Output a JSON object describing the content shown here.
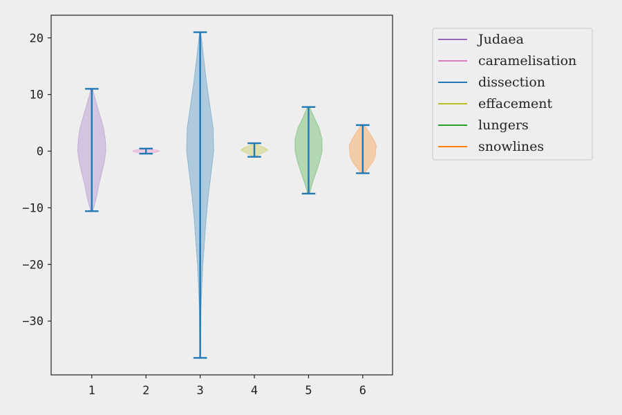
{
  "chart_data": {
    "type": "violin",
    "title": "",
    "xlabel": "",
    "ylabel": "",
    "x_ticks": [
      1,
      2,
      3,
      4,
      5,
      6
    ],
    "y_ticks": [
      20,
      10,
      0,
      -10,
      -20,
      -30
    ],
    "xlim": [
      0.25,
      6.55
    ],
    "ylim": [
      -39.5,
      24.0
    ],
    "legend_position": "upper-right-outside",
    "colors": {
      "background": "#eeeeee",
      "axes_face": "#eeeeee",
      "axis": "#222222",
      "stat_lines": "#1f77b4"
    },
    "series": [
      {
        "name": "Judaea",
        "position": 1,
        "min": -10.6,
        "max": 11.0,
        "max_half_width": 0.26,
        "color": "#9467bd",
        "profile": [
          [
            -10.6,
            0.02
          ],
          [
            -9.5,
            0.05
          ],
          [
            -8,
            0.09
          ],
          [
            -6,
            0.13
          ],
          [
            -4,
            0.18
          ],
          [
            -2,
            0.23
          ],
          [
            0,
            0.26
          ],
          [
            2,
            0.25
          ],
          [
            4,
            0.22
          ],
          [
            6,
            0.16
          ],
          [
            8,
            0.1
          ],
          [
            10,
            0.04
          ],
          [
            11.0,
            0.02
          ]
        ]
      },
      {
        "name": "caramelisation",
        "position": 2,
        "min": -0.45,
        "max": 0.45,
        "max_half_width": 0.25,
        "color": "#e377c2",
        "profile": [
          [
            -0.45,
            0.02
          ],
          [
            -0.3,
            0.12
          ],
          [
            -0.15,
            0.22
          ],
          [
            0,
            0.25
          ],
          [
            0.15,
            0.22
          ],
          [
            0.3,
            0.12
          ],
          [
            0.45,
            0.02
          ]
        ]
      },
      {
        "name": "dissection",
        "position": 3,
        "min": -36.5,
        "max": 21.0,
        "max_half_width": 0.25,
        "color": "#1f77b4",
        "profile": [
          [
            -36.5,
            0.005
          ],
          [
            -32,
            0.01
          ],
          [
            -28,
            0.015
          ],
          [
            -24,
            0.03
          ],
          [
            -20,
            0.05
          ],
          [
            -16,
            0.08
          ],
          [
            -12,
            0.11
          ],
          [
            -8,
            0.15
          ],
          [
            -4,
            0.2
          ],
          [
            0,
            0.25
          ],
          [
            4,
            0.24
          ],
          [
            8,
            0.18
          ],
          [
            12,
            0.12
          ],
          [
            16,
            0.07
          ],
          [
            19,
            0.035
          ],
          [
            21.0,
            0.01
          ]
        ]
      },
      {
        "name": "effacement",
        "position": 4,
        "min": -1.0,
        "max": 1.4,
        "max_half_width": 0.25,
        "color": "#bcbd22",
        "profile": [
          [
            -1.0,
            0.01
          ],
          [
            -0.6,
            0.09
          ],
          [
            -0.2,
            0.18
          ],
          [
            0.2,
            0.25
          ],
          [
            0.6,
            0.19
          ],
          [
            1.0,
            0.09
          ],
          [
            1.4,
            0.01
          ]
        ]
      },
      {
        "name": "lungers",
        "position": 5,
        "min": -7.5,
        "max": 7.8,
        "max_half_width": 0.25,
        "color": "#2ca02c",
        "profile": [
          [
            -7.5,
            0.02
          ],
          [
            -6,
            0.06
          ],
          [
            -4,
            0.13
          ],
          [
            -2,
            0.2
          ],
          [
            0,
            0.25
          ],
          [
            2,
            0.25
          ],
          [
            4,
            0.2
          ],
          [
            6,
            0.1
          ],
          [
            7.8,
            0.02
          ]
        ]
      },
      {
        "name": "snowlines",
        "position": 6,
        "min": -3.9,
        "max": 4.6,
        "max_half_width": 0.25,
        "color": "#ff7f0e",
        "profile": [
          [
            -3.9,
            0.03
          ],
          [
            -3,
            0.1
          ],
          [
            -2,
            0.18
          ],
          [
            -1,
            0.23
          ],
          [
            0,
            0.24
          ],
          [
            1,
            0.25
          ],
          [
            2,
            0.2
          ],
          [
            3,
            0.14
          ],
          [
            4,
            0.07
          ],
          [
            4.6,
            0.02
          ]
        ]
      }
    ],
    "legend_order": [
      "Judaea",
      "caramelisation",
      "dissection",
      "effacement",
      "lungers",
      "snowlines"
    ]
  }
}
